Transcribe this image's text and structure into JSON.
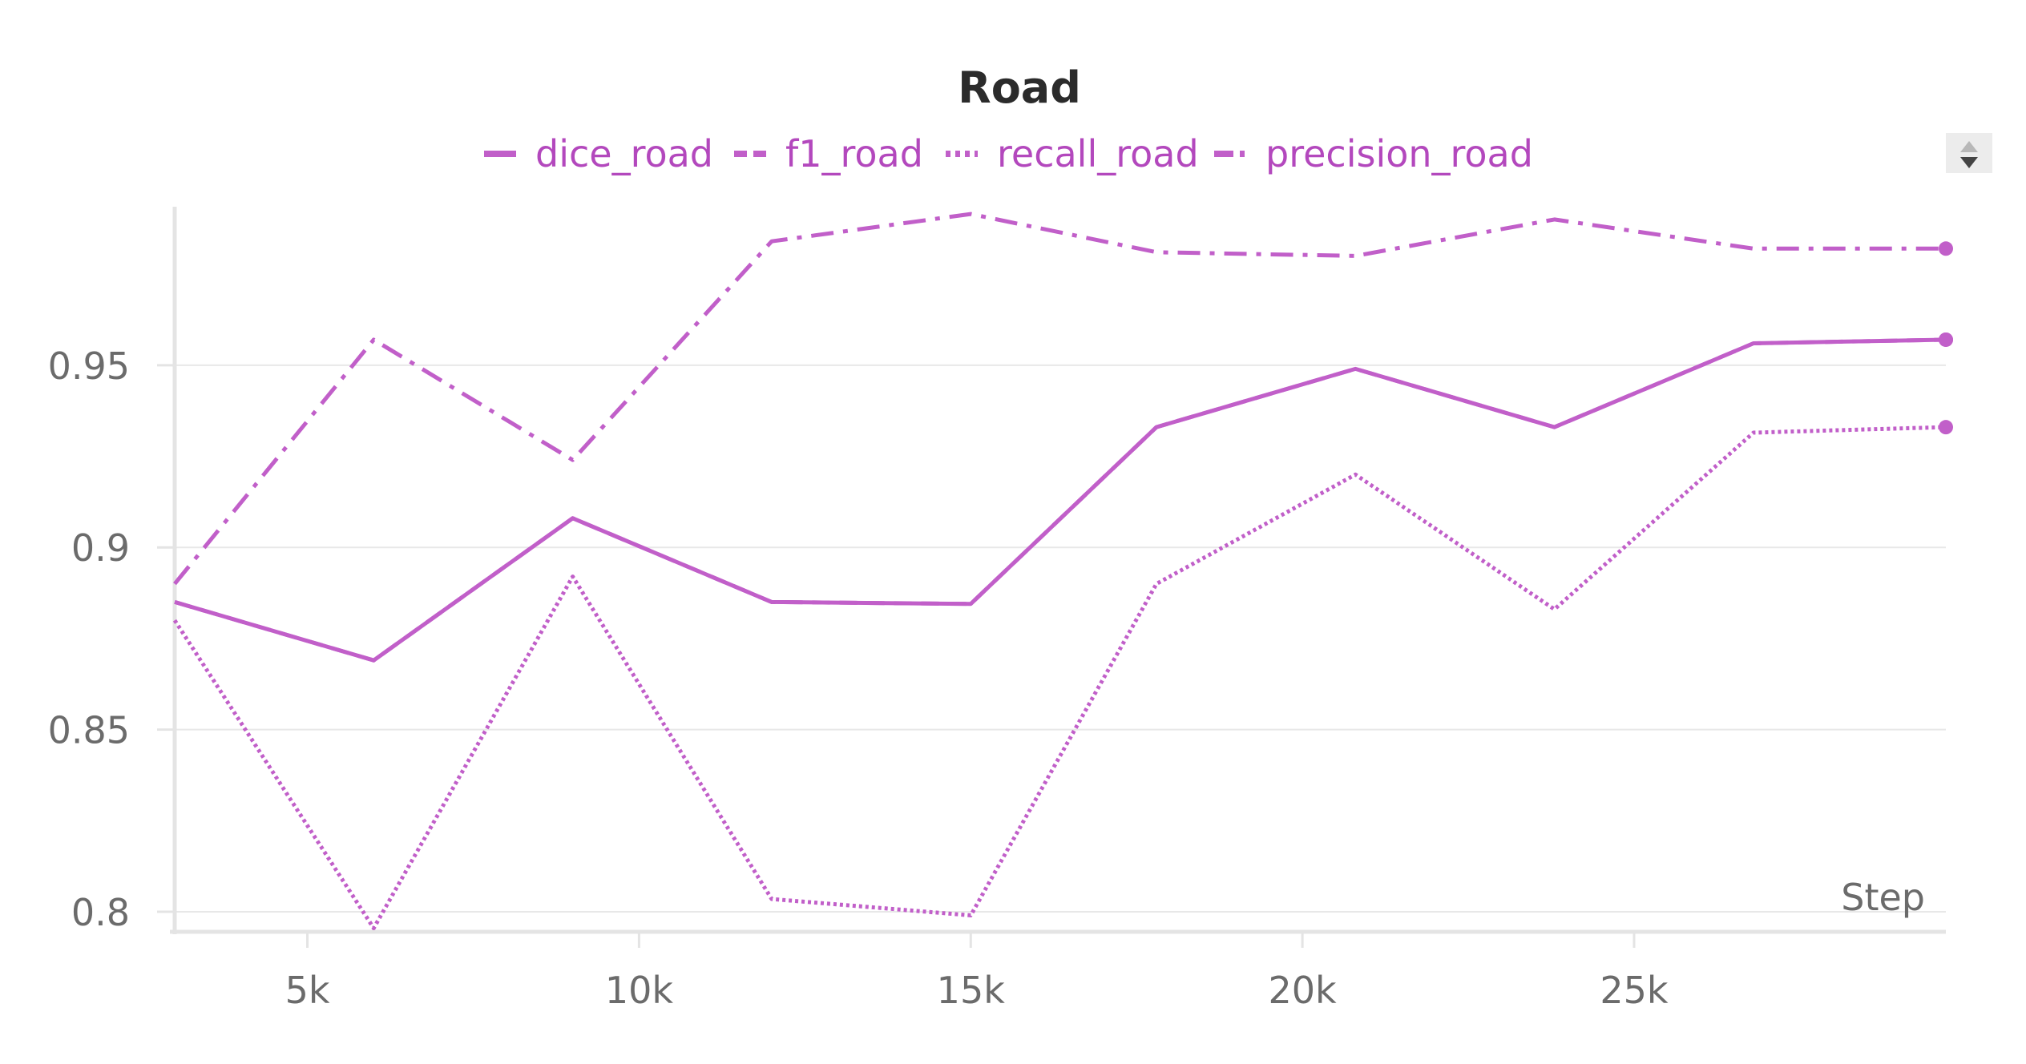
{
  "chart_data": {
    "type": "line",
    "title": "Road",
    "xlabel": "Step",
    "ylabel": "",
    "xlim": [
      3000,
      29700
    ],
    "ylim": [
      0.7945,
      0.9935
    ],
    "x_ticks": [
      {
        "value": 5000,
        "label": "5k"
      },
      {
        "value": 10000,
        "label": "10k"
      },
      {
        "value": 15000,
        "label": "15k"
      },
      {
        "value": 20000,
        "label": "20k"
      },
      {
        "value": 25000,
        "label": "25k"
      }
    ],
    "y_ticks": [
      {
        "value": 0.8,
        "label": "0.8"
      },
      {
        "value": 0.85,
        "label": "0.85"
      },
      {
        "value": 0.9,
        "label": "0.9"
      },
      {
        "value": 0.95,
        "label": "0.95"
      }
    ],
    "grid": true,
    "legend_position": "top-center",
    "colors": {
      "series": "#c15fc9",
      "text": "#b348bd"
    },
    "x": [
      3000,
      6000,
      9000,
      12000,
      15000,
      17800,
      20800,
      23800,
      26800,
      29700
    ],
    "series": [
      {
        "name": "dice_road",
        "style": "solid",
        "values": [
          0.885,
          0.869,
          0.908,
          0.885,
          0.8845,
          0.933,
          0.949,
          0.933,
          0.956,
          0.957
        ]
      },
      {
        "name": "f1_road",
        "style": "dashed",
        "values": [
          0.885,
          0.869,
          0.908,
          0.885,
          0.8845,
          0.933,
          0.949,
          0.933,
          0.956,
          0.957
        ]
      },
      {
        "name": "recall_road",
        "style": "dotted",
        "values": [
          0.88,
          0.7955,
          0.892,
          0.8035,
          0.799,
          0.89,
          0.92,
          0.883,
          0.9315,
          0.933
        ]
      },
      {
        "name": "precision_road",
        "style": "dashdot",
        "values": [
          0.89,
          0.957,
          0.924,
          0.984,
          0.9915,
          0.981,
          0.98,
          0.99,
          0.982,
          0.982
        ]
      }
    ]
  }
}
